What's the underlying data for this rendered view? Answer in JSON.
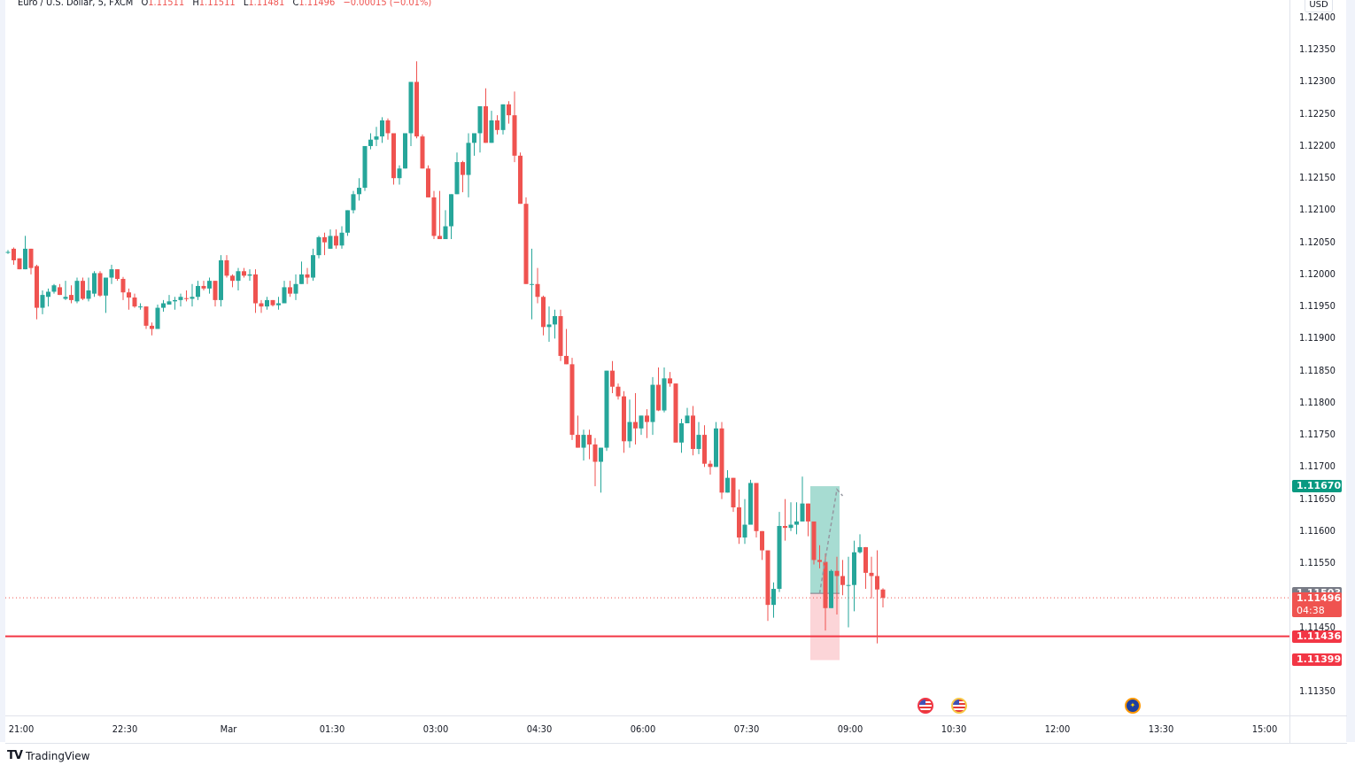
{
  "header": {
    "symbol": "Euro / U.S. Dollar, 5, FXCM",
    "open_label": "O",
    "open": "1.11511",
    "high_label": "H",
    "high": "1.11511",
    "low_label": "L",
    "low": "1.11481",
    "close_label": "C",
    "close": "1.11496",
    "change": "−0.00015 (−0.01%)"
  },
  "price_axis": {
    "currency": "USD",
    "ticks": [
      "1.12400",
      "1.12350",
      "1.12300",
      "1.12250",
      "1.12200",
      "1.12150",
      "1.12100",
      "1.12050",
      "1.12000",
      "1.11950",
      "1.11900",
      "1.11850",
      "1.11800",
      "1.11750",
      "1.11700",
      "1.11650",
      "1.11600",
      "1.11550",
      "1.11450",
      "1.11350"
    ],
    "badges": {
      "target": {
        "value": "1.11670",
        "color": "#089981"
      },
      "last_bar": {
        "value": "1.11503",
        "color": "#787b86"
      },
      "current": {
        "value": "1.11496",
        "countdown": "04:38",
        "color": "#ef5350"
      },
      "line": {
        "value": "1.11436",
        "color": "#f23645"
      },
      "stop": {
        "value": "1.11399",
        "color": "#f23645"
      }
    }
  },
  "time_axis": {
    "labels": [
      "21:00",
      "22:30",
      "Mar",
      "01:30",
      "03:00",
      "04:30",
      "06:00",
      "07:30",
      "09:00",
      "10:30",
      "12:00",
      "13:30",
      "15:00"
    ]
  },
  "events": [
    {
      "name": "us-event-red",
      "country": "US",
      "ring": "#f23645"
    },
    {
      "name": "us-event-yellow",
      "country": "US",
      "ring": "#f7c948"
    },
    {
      "name": "eu-event-orange",
      "country": "EU",
      "ring": "#ff9800"
    }
  ],
  "footer": {
    "brand": "TradingView",
    "logo": "TV"
  },
  "colors": {
    "up": "#26a69a",
    "down": "#ef5350",
    "profit_zone": "#a7dcd2",
    "loss_zone": "#fcd5d8",
    "hline": "#f23645"
  },
  "chart_data": {
    "type": "candlestick",
    "title": "Euro / U.S. Dollar, 5, FXCM",
    "xlabel": "",
    "ylabel": "USD",
    "ylim": [
      1.1132,
      1.1243
    ],
    "x_tick_labels": [
      "21:00",
      "22:30",
      "Mar",
      "01:30",
      "03:00",
      "04:30",
      "06:00",
      "07:30",
      "09:00",
      "10:30",
      "12:00",
      "13:30",
      "15:00"
    ],
    "interval_minutes": 5,
    "horizontal_line": 1.11436,
    "position": {
      "type": "long",
      "entry": 1.11503,
      "target": 1.1167,
      "stop": 1.11399
    },
    "ohlc": [
      [
        1.12035,
        1.12038,
        1.12032,
        1.12035
      ],
      [
        1.1204,
        1.12042,
        1.12015,
        1.12022
      ],
      [
        1.12025,
        1.12025,
        1.12008,
        1.12008
      ],
      [
        1.12008,
        1.1206,
        1.12008,
        1.1204
      ],
      [
        1.1204,
        1.1204,
        1.12,
        1.1201
      ],
      [
        1.12013,
        1.12015,
        1.1193,
        1.11948
      ],
      [
        1.11948,
        1.11975,
        1.11938,
        1.11968
      ],
      [
        1.11965,
        1.11978,
        1.1195,
        1.11973
      ],
      [
        1.11973,
        1.11985,
        1.1197,
        1.11983
      ],
      [
        1.1198,
        1.11985,
        1.11968,
        1.11968
      ],
      [
        1.11962,
        1.1199,
        1.1196,
        1.11965
      ],
      [
        1.11968,
        1.11983,
        1.11955,
        1.1196
      ],
      [
        1.11958,
        1.11995,
        1.11955,
        1.1199
      ],
      [
        1.1199,
        1.11995,
        1.1196,
        1.11962
      ],
      [
        1.11962,
        1.11995,
        1.11958,
        1.11975
      ],
      [
        1.1197,
        1.12005,
        1.11965,
        1.12002
      ],
      [
        1.12002,
        1.12005,
        1.11965,
        1.11967
      ],
      [
        1.11967,
        1.11995,
        1.1194,
        1.11995
      ],
      [
        1.11995,
        1.12015,
        1.11985,
        1.12008
      ],
      [
        1.12008,
        1.12008,
        1.1199,
        1.11993
      ],
      [
        1.11993,
        1.11996,
        1.1196,
        1.11972
      ],
      [
        1.11972,
        1.11978,
        1.11945,
        1.11964
      ],
      [
        1.11964,
        1.1197,
        1.11948,
        1.1195
      ],
      [
        1.1195,
        1.11955,
        1.11945,
        1.1195
      ],
      [
        1.1195,
        1.1195,
        1.11915,
        1.1192
      ],
      [
        1.1192,
        1.11925,
        1.11905,
        1.11915
      ],
      [
        1.11915,
        1.11953,
        1.11915,
        1.11948
      ],
      [
        1.11948,
        1.1196,
        1.11942,
        1.11955
      ],
      [
        1.11953,
        1.11968,
        1.11953,
        1.11958
      ],
      [
        1.11958,
        1.11965,
        1.11945,
        1.1196
      ],
      [
        1.1196,
        1.1197,
        1.1195,
        1.11965
      ],
      [
        1.11963,
        1.11975,
        1.11958,
        1.11962
      ],
      [
        1.11962,
        1.11985,
        1.1195,
        1.11965
      ],
      [
        1.11965,
        1.1199,
        1.1196,
        1.11982
      ],
      [
        1.11982,
        1.1199,
        1.11975,
        1.11978
      ],
      [
        1.11978,
        1.11995,
        1.1197,
        1.1199
      ],
      [
        1.1199,
        1.1199,
        1.1195,
        1.1196
      ],
      [
        1.1196,
        1.1203,
        1.1195,
        1.12022
      ],
      [
        1.12022,
        1.1203,
        1.11995,
        1.11998
      ],
      [
        1.11998,
        1.12,
        1.1198,
        1.1199
      ],
      [
        1.1199,
        1.1201,
        1.11975,
        1.12005
      ],
      [
        1.12005,
        1.1201,
        1.11995,
        1.11998
      ],
      [
        1.11998,
        1.12008,
        1.1199,
        1.12
      ],
      [
        1.12,
        1.12008,
        1.1194,
        1.11955
      ],
      [
        1.11955,
        1.1196,
        1.1194,
        1.1195
      ],
      [
        1.1195,
        1.11965,
        1.11945,
        1.1196
      ],
      [
        1.1196,
        1.1196,
        1.1195,
        1.11952
      ],
      [
        1.11952,
        1.11965,
        1.11945,
        1.11955
      ],
      [
        1.11955,
        1.1199,
        1.11955,
        1.1198
      ],
      [
        1.1198,
        1.1199,
        1.11965,
        1.1197
      ],
      [
        1.1197,
        1.12,
        1.1196,
        1.11985
      ],
      [
        1.11985,
        1.1202,
        1.11985,
        1.12
      ],
      [
        1.12,
        1.1201,
        1.11985,
        1.11995
      ],
      [
        1.11995,
        1.1204,
        1.1199,
        1.1203
      ],
      [
        1.1203,
        1.1206,
        1.12025,
        1.12058
      ],
      [
        1.12058,
        1.12065,
        1.1203,
        1.1205
      ],
      [
        1.1204,
        1.1207,
        1.1204,
        1.1206
      ],
      [
        1.1206,
        1.1207,
        1.1204,
        1.12045
      ],
      [
        1.12045,
        1.12075,
        1.1204,
        1.12065
      ],
      [
        1.12065,
        1.121,
        1.1206,
        1.121
      ],
      [
        1.121,
        1.1213,
        1.12095,
        1.12125
      ],
      [
        1.12125,
        1.1215,
        1.12115,
        1.12135
      ],
      [
        1.12135,
        1.1219,
        1.1213,
        1.122
      ],
      [
        1.122,
        1.1222,
        1.12195,
        1.1221
      ],
      [
        1.1221,
        1.1223,
        1.122,
        1.12215
      ],
      [
        1.12215,
        1.12245,
        1.12205,
        1.1224
      ],
      [
        1.1224,
        1.12243,
        1.1221,
        1.1222
      ],
      [
        1.1222,
        1.1222,
        1.1214,
        1.1215
      ],
      [
        1.1215,
        1.1217,
        1.1214,
        1.12165
      ],
      [
        1.12165,
        1.1221,
        1.12165,
        1.1222
      ],
      [
        1.1222,
        1.1229,
        1.122,
        1.123
      ],
      [
        1.123,
        1.12332,
        1.12212,
        1.12215
      ],
      [
        1.12215,
        1.12218,
        1.12165,
        1.12165
      ],
      [
        1.12165,
        1.1217,
        1.1212,
        1.1212
      ],
      [
        1.1212,
        1.1213,
        1.12055,
        1.1206
      ],
      [
        1.1206,
        1.1213,
        1.12055,
        1.12055
      ],
      [
        1.12055,
        1.121,
        1.12055,
        1.12075
      ],
      [
        1.12075,
        1.12125,
        1.12055,
        1.12125
      ],
      [
        1.12125,
        1.1219,
        1.1213,
        1.12175
      ],
      [
        1.12175,
        1.12177,
        1.12128,
        1.12155
      ],
      [
        1.12155,
        1.1222,
        1.1212,
        1.12205
      ],
      [
        1.12205,
        1.1222,
        1.12185,
        1.1222
      ],
      [
        1.1222,
        1.12242,
        1.1219,
        1.12262
      ],
      [
        1.12262,
        1.1229,
        1.12205,
        1.12205
      ],
      [
        1.12205,
        1.12255,
        1.12205,
        1.1224
      ],
      [
        1.1224,
        1.12248,
        1.12218,
        1.12225
      ],
      [
        1.12225,
        1.12265,
        1.12218,
        1.12265
      ],
      [
        1.12265,
        1.1227,
        1.12235,
        1.12248
      ],
      [
        1.12248,
        1.12285,
        1.12175,
        1.12185
      ],
      [
        1.12185,
        1.1219,
        1.1211,
        1.1211
      ],
      [
        1.1211,
        1.1212,
        1.11985,
        1.11985
      ],
      [
        1.11985,
        1.1204,
        1.1193,
        1.11985
      ],
      [
        1.11985,
        1.1201,
        1.11955,
        1.11965
      ],
      [
        1.11965,
        1.11967,
        1.11905,
        1.11918
      ],
      [
        1.11918,
        1.1195,
        1.11895,
        1.11922
      ],
      [
        1.11922,
        1.11945,
        1.119,
        1.11935
      ],
      [
        1.11935,
        1.11945,
        1.11865,
        1.11873
      ],
      [
        1.11873,
        1.11915,
        1.11865,
        1.1186
      ],
      [
        1.1186,
        1.1187,
        1.11742,
        1.1175
      ],
      [
        1.1175,
        1.1178,
        1.11735,
        1.1173
      ],
      [
        1.1173,
        1.11758,
        1.1171,
        1.1175
      ],
      [
        1.1175,
        1.11758,
        1.11712,
        1.11735
      ],
      [
        1.11735,
        1.11745,
        1.1167,
        1.11708
      ],
      [
        1.11708,
        1.11728,
        1.1166,
        1.1173
      ],
      [
        1.1173,
        1.1185,
        1.11725,
        1.1185
      ],
      [
        1.1185,
        1.11865,
        1.11815,
        1.11825
      ],
      [
        1.11825,
        1.1183,
        1.11805,
        1.1181
      ],
      [
        1.1181,
        1.11818,
        1.11722,
        1.1174
      ],
      [
        1.1174,
        1.11805,
        1.1173,
        1.1177
      ],
      [
        1.1177,
        1.11815,
        1.11735,
        1.1176
      ],
      [
        1.1176,
        1.11772,
        1.1175,
        1.1178
      ],
      [
        1.1178,
        1.1179,
        1.11745,
        1.1177
      ],
      [
        1.1177,
        1.1184,
        1.1175,
        1.11828
      ],
      [
        1.11828,
        1.11855,
        1.11787,
        1.11788
      ],
      [
        1.11788,
        1.11855,
        1.11785,
        1.11838
      ],
      [
        1.11838,
        1.11848,
        1.11825,
        1.1183
      ],
      [
        1.1183,
        1.1183,
        1.1174,
        1.11738
      ],
      [
        1.11738,
        1.11775,
        1.11722,
        1.11768
      ],
      [
        1.11768,
        1.11792,
        1.1178,
        1.1178
      ],
      [
        1.1178,
        1.11795,
        1.11718,
        1.11728
      ],
      [
        1.11728,
        1.1177,
        1.1172,
        1.1175
      ],
      [
        1.1175,
        1.11765,
        1.117,
        1.11705
      ],
      [
        1.11705,
        1.1171,
        1.11688,
        1.117
      ],
      [
        1.117,
        1.1177,
        1.117,
        1.1176
      ],
      [
        1.1176,
        1.1177,
        1.1165,
        1.1166
      ],
      [
        1.1166,
        1.11695,
        1.11675,
        1.11683
      ],
      [
        1.11683,
        1.1167,
        1.1163,
        1.11637
      ],
      [
        1.11637,
        1.11665,
        1.1158,
        1.1159
      ],
      [
        1.1159,
        1.1165,
        1.1158,
        1.1161
      ],
      [
        1.1161,
        1.1168,
        1.1163,
        1.11675
      ],
      [
        1.11675,
        1.1167,
        1.1159,
        1.116
      ],
      [
        1.116,
        1.116,
        1.11555,
        1.1157
      ],
      [
        1.1157,
        1.1157,
        1.1146,
        1.11485
      ],
      [
        1.11485,
        1.1152,
        1.11465,
        1.1151
      ],
      [
        1.1151,
        1.1163,
        1.11505,
        1.11608
      ],
      [
        1.11608,
        1.1165,
        1.11585,
        1.11605
      ],
      [
        1.11605,
        1.11645,
        1.116,
        1.1161
      ],
      [
        1.1161,
        1.11645,
        1.11595,
        1.11615
      ],
      [
        1.11615,
        1.11685,
        1.11615,
        1.11643
      ],
      [
        1.11643,
        1.1162,
        1.11592,
        1.11615
      ],
      [
        1.11615,
        1.11605,
        1.11548,
        1.11555
      ],
      [
        1.11555,
        1.11578,
        1.11542,
        1.11552
      ],
      [
        1.11552,
        1.11565,
        1.11445,
        1.1148
      ],
      [
        1.1148,
        1.1154,
        1.1148,
        1.11538
      ],
      [
        1.11538,
        1.1156,
        1.1147,
        1.1153
      ],
      [
        1.1153,
        1.11555,
        1.115,
        1.11516
      ],
      [
        1.11516,
        1.1156,
        1.1145,
        1.11516
      ],
      [
        1.11516,
        1.11585,
        1.11475,
        1.11567
      ],
      [
        1.11567,
        1.11595,
        1.11565,
        1.11575
      ],
      [
        1.11575,
        1.11565,
        1.1151,
        1.11535
      ],
      [
        1.11535,
        1.1156,
        1.11495,
        1.1153
      ],
      [
        1.1153,
        1.1157,
        1.11425,
        1.11509
      ],
      [
        1.11509,
        1.11511,
        1.11481,
        1.11496
      ]
    ]
  }
}
